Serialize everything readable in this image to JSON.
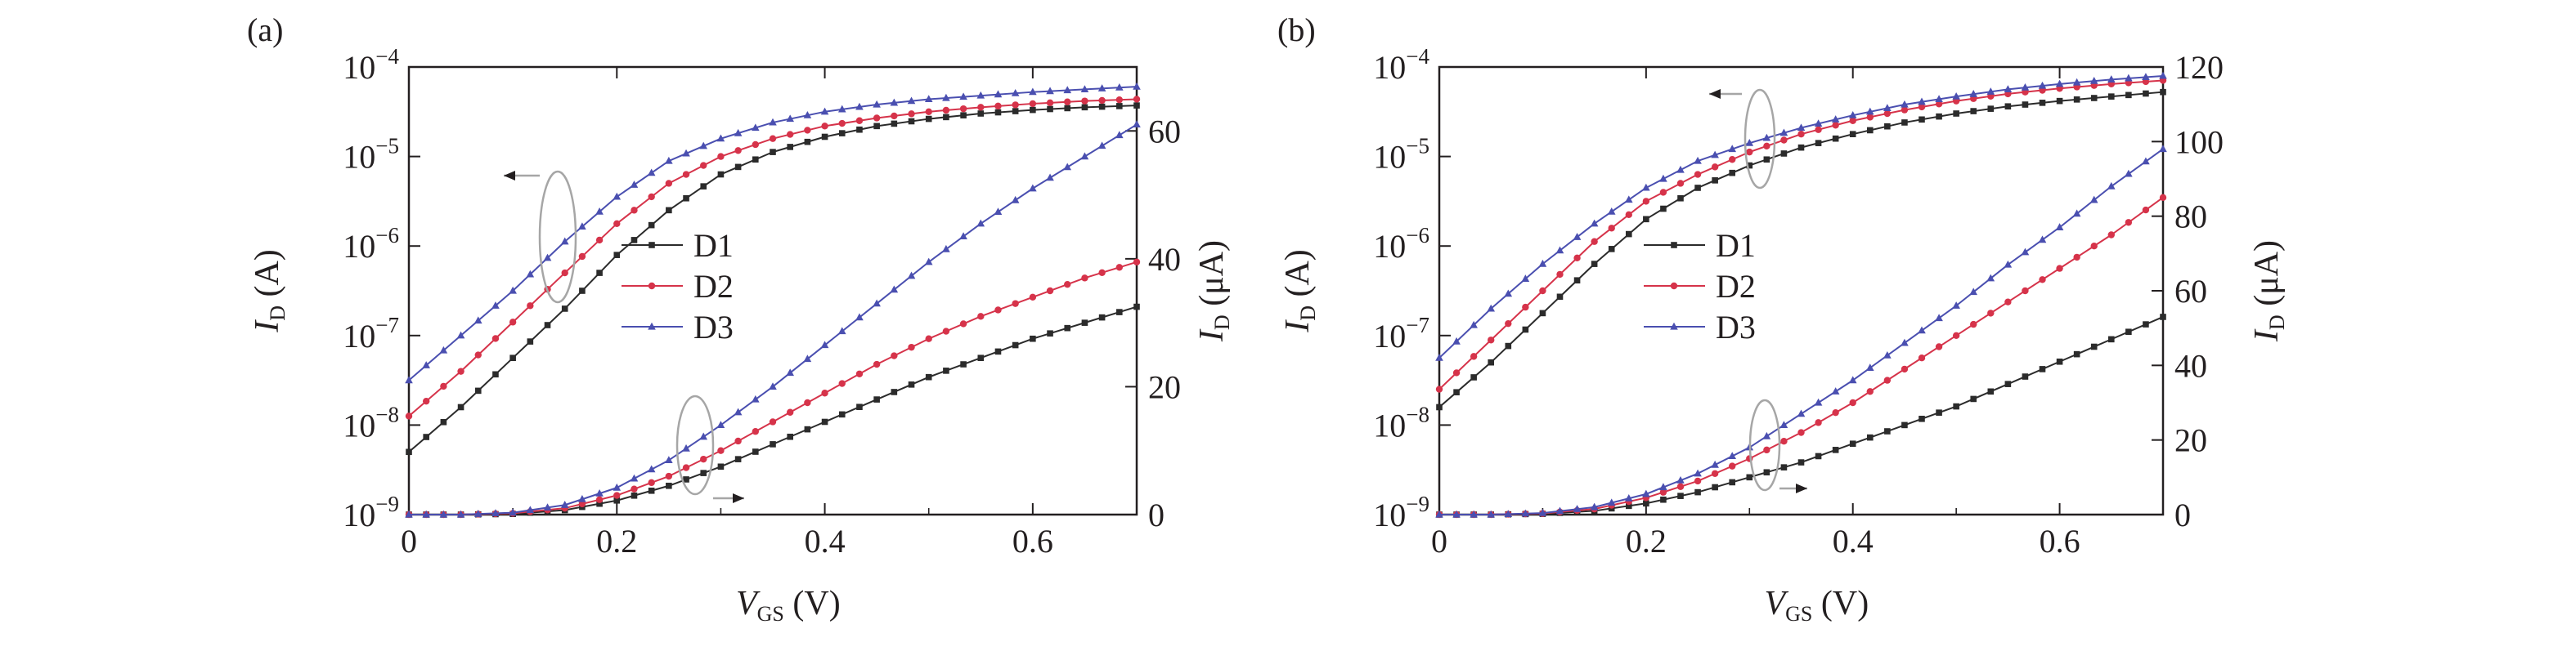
{
  "figure": {
    "colors": {
      "axis": "#231f20",
      "D1": "#2b2b2b",
      "D2": "#d6334a",
      "D3": "#4a4fb0",
      "annotation": "#a6a6a6"
    }
  },
  "chart_data": [
    {
      "type": "line",
      "panel_label": "(a)",
      "xlabel": {
        "main": "V",
        "sub": "GS",
        "unit": " (V)"
      },
      "ylabel_left": {
        "main": "I",
        "sub": "D",
        "unit": " (A)"
      },
      "ylabel_right": {
        "main": "I",
        "sub": "D",
        "unit": " (μA)"
      },
      "xlim": [
        0,
        0.7
      ],
      "xticks": [
        0,
        0.2,
        0.4,
        0.6
      ],
      "xtick_labels": [
        "0",
        "0.2",
        "0.4",
        "0.6"
      ],
      "ylim_left_log10": [
        -9,
        -4
      ],
      "yticks_left": [
        {
          "base": "10",
          "exp": "−9"
        },
        {
          "base": "10",
          "exp": "−8"
        },
        {
          "base": "10",
          "exp": "−7"
        },
        {
          "base": "10",
          "exp": "−6"
        },
        {
          "base": "10",
          "exp": "−5"
        },
        {
          "base": "10",
          "exp": "−4"
        }
      ],
      "ylim_right": [
        0,
        70
      ],
      "yticks_right": [
        0,
        20,
        40,
        60
      ],
      "ytick_right_labels": [
        "0",
        "20",
        "40",
        "60"
      ],
      "legend": {
        "position": "center",
        "entries": [
          "D1",
          "D2",
          "D3"
        ]
      },
      "x": [
        0,
        0.05,
        0.1,
        0.15,
        0.2,
        0.25,
        0.3,
        0.35,
        0.4,
        0.45,
        0.5,
        0.55,
        0.6,
        0.65,
        0.7
      ],
      "series_log_left_axis": [
        {
          "name": "D1",
          "log10_values": [
            -8.3,
            -7.8,
            -7.25,
            -6.7,
            -6.1,
            -5.6,
            -5.2,
            -4.95,
            -4.78,
            -4.66,
            -4.58,
            -4.52,
            -4.48,
            -4.45,
            -4.43
          ]
        },
        {
          "name": "D2",
          "log10_values": [
            -7.9,
            -7.4,
            -6.85,
            -6.3,
            -5.75,
            -5.3,
            -5.0,
            -4.8,
            -4.66,
            -4.57,
            -4.5,
            -4.45,
            -4.41,
            -4.38,
            -4.36
          ]
        },
        {
          "name": "D3",
          "log10_values": [
            -7.5,
            -7.0,
            -6.5,
            -5.95,
            -5.45,
            -5.05,
            -4.8,
            -4.62,
            -4.5,
            -4.42,
            -4.36,
            -4.32,
            -4.28,
            -4.25,
            -4.22
          ]
        }
      ],
      "series_linear_right_axis": [
        {
          "name": "D1",
          "values": [
            0,
            0,
            0.1,
            0.7,
            2.2,
            4.5,
            7.5,
            11,
            14.5,
            18,
            21.5,
            24.5,
            27.5,
            30,
            32.5
          ]
        },
        {
          "name": "D2",
          "values": [
            0,
            0,
            0.2,
            1.0,
            3.0,
            6.0,
            10,
            14.5,
            19,
            23.5,
            27.5,
            31,
            34,
            37,
            39.5
          ]
        },
        {
          "name": "D3",
          "values": [
            0,
            0,
            0.3,
            1.5,
            4.2,
            8.5,
            14,
            20,
            26.5,
            33,
            39.5,
            45.5,
            51,
            56,
            61
          ]
        }
      ]
    },
    {
      "type": "line",
      "panel_label": "(b)",
      "xlabel": {
        "main": "V",
        "sub": "GS",
        "unit": " (V)"
      },
      "ylabel_left": {
        "main": "I",
        "sub": "D",
        "unit": " (A)"
      },
      "ylabel_right": {
        "main": "I",
        "sub": "D",
        "unit": " (μA)"
      },
      "xlim": [
        0,
        0.7
      ],
      "xticks": [
        0,
        0.2,
        0.4,
        0.6
      ],
      "xtick_labels": [
        "0",
        "0.2",
        "0.4",
        "0.6"
      ],
      "ylim_left_log10": [
        -9,
        -4
      ],
      "yticks_left": [
        {
          "base": "10",
          "exp": "−9"
        },
        {
          "base": "10",
          "exp": "−8"
        },
        {
          "base": "10",
          "exp": "−7"
        },
        {
          "base": "10",
          "exp": "−6"
        },
        {
          "base": "10",
          "exp": "−5"
        },
        {
          "base": "10",
          "exp": "−4"
        }
      ],
      "ylim_right": [
        0,
        120
      ],
      "yticks_right": [
        0,
        20,
        40,
        60,
        80,
        100,
        120
      ],
      "ytick_right_labels": [
        "0",
        "20",
        "40",
        "60",
        "80",
        "100",
        "120"
      ],
      "legend": {
        "position": "center",
        "entries": [
          "D1",
          "D2",
          "D3"
        ]
      },
      "x": [
        0,
        0.05,
        0.1,
        0.15,
        0.2,
        0.25,
        0.3,
        0.35,
        0.4,
        0.45,
        0.5,
        0.55,
        0.6,
        0.65,
        0.7
      ],
      "series_log_left_axis": [
        {
          "name": "D1",
          "log10_values": [
            -7.8,
            -7.3,
            -6.75,
            -6.2,
            -5.7,
            -5.35,
            -5.1,
            -4.9,
            -4.75,
            -4.62,
            -4.52,
            -4.44,
            -4.38,
            -4.33,
            -4.28
          ]
        },
        {
          "name": "D2",
          "log10_values": [
            -7.6,
            -7.05,
            -6.5,
            -5.95,
            -5.5,
            -5.2,
            -4.95,
            -4.75,
            -4.6,
            -4.48,
            -4.38,
            -4.3,
            -4.24,
            -4.19,
            -4.15
          ]
        },
        {
          "name": "D3",
          "log10_values": [
            -7.25,
            -6.7,
            -6.2,
            -5.75,
            -5.35,
            -5.05,
            -4.85,
            -4.68,
            -4.54,
            -4.42,
            -4.33,
            -4.25,
            -4.19,
            -4.14,
            -4.1
          ]
        }
      ],
      "series_linear_right_axis": [
        {
          "name": "D1",
          "values": [
            0,
            0,
            0.2,
            1.0,
            3.0,
            6.0,
            10,
            14,
            19,
            24,
            29,
            35,
            41,
            47,
            53
          ]
        },
        {
          "name": "D2",
          "values": [
            0,
            0,
            0.3,
            1.5,
            4.5,
            9,
            15,
            22,
            30,
            39,
            48,
            57,
            66,
            75,
            85
          ]
        },
        {
          "name": "D3",
          "values": [
            0,
            0,
            0.4,
            2.0,
            5.5,
            11,
            18,
            27,
            36,
            46,
            56,
            67,
            77,
            88,
            98
          ]
        }
      ]
    }
  ]
}
